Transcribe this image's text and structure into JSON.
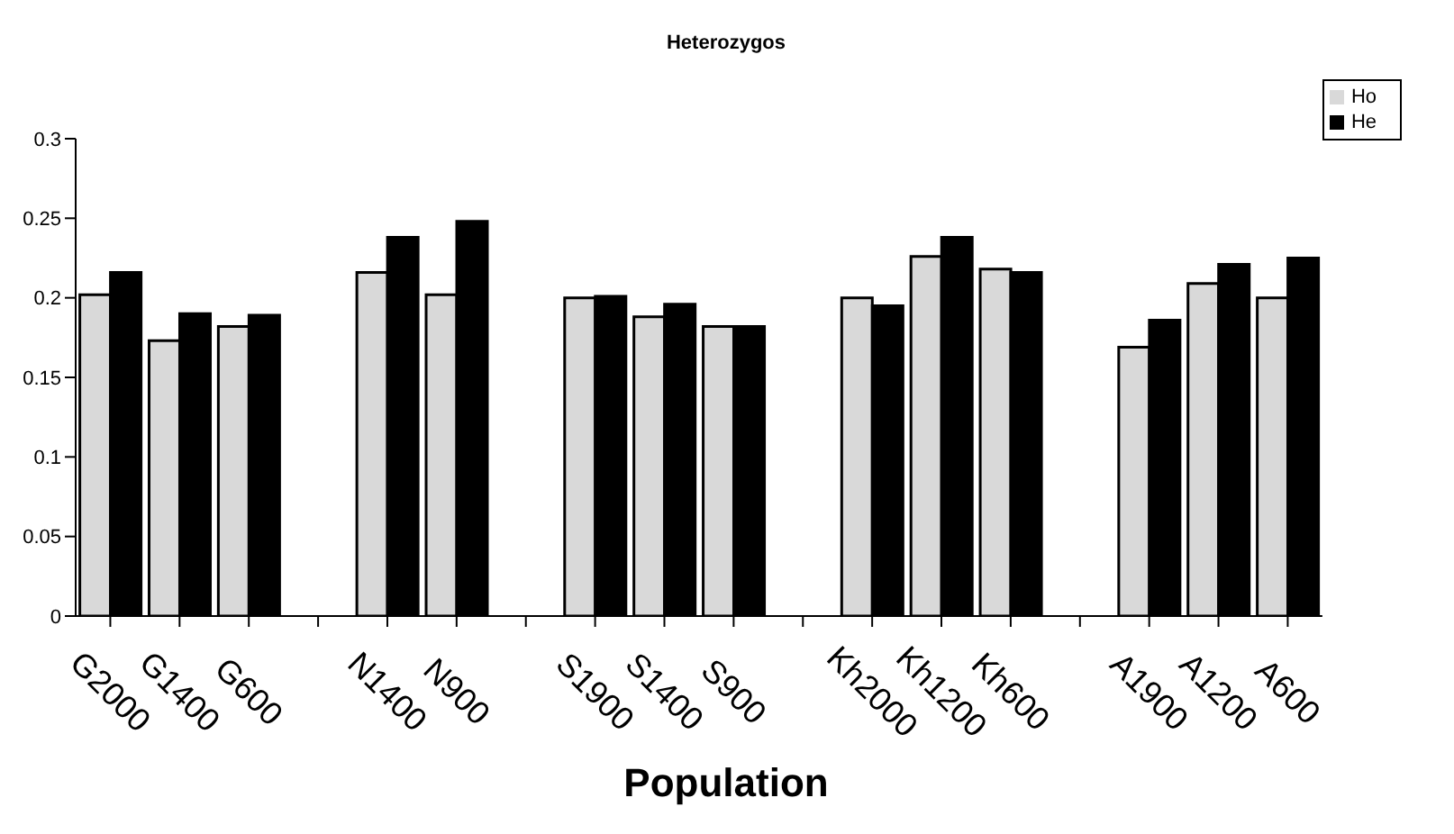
{
  "chart_data": {
    "type": "bar",
    "title": "Heterozygos",
    "xlabel": "Population",
    "categories": [
      "G2000",
      "G1400",
      "G600",
      null,
      "N1400",
      "N900",
      null,
      "S1900",
      "S1400",
      "S900",
      null,
      "Kh2000",
      "Kh1200",
      "Kh600",
      null,
      "A1900",
      "A1200",
      "A600"
    ],
    "series": [
      {
        "name": "Ho",
        "color": "#d9d9d9",
        "values": [
          0.202,
          0.173,
          0.182,
          null,
          0.216,
          0.202,
          null,
          0.2,
          0.188,
          0.182,
          null,
          0.2,
          0.226,
          0.218,
          null,
          0.169,
          0.209,
          0.2
        ]
      },
      {
        "name": "He",
        "color": "#000000",
        "values": [
          0.216,
          0.19,
          0.189,
          null,
          0.238,
          0.248,
          null,
          0.201,
          0.196,
          0.182,
          null,
          0.195,
          0.238,
          0.216,
          null,
          0.186,
          0.221,
          0.225
        ]
      }
    ],
    "ylim": [
      0,
      0.3
    ],
    "yticks": [
      0,
      0.05,
      0.1,
      0.15,
      0.2,
      0.25,
      0.3
    ],
    "grid": false,
    "legend": "top right"
  }
}
